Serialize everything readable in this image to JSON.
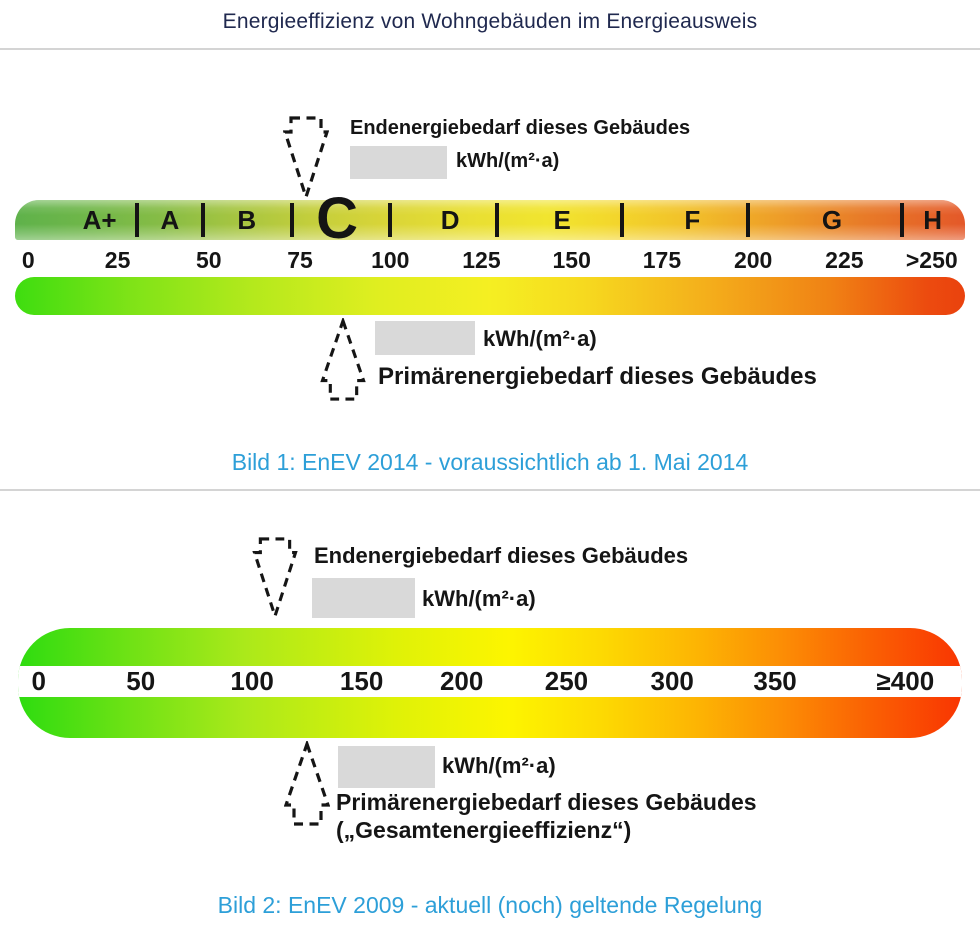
{
  "page": {
    "title": "Energieeffizienz von Wohngebäuden im Energieausweis"
  },
  "colors": {
    "title_navy": "#20294f",
    "caption_blue": "#2d9fd8",
    "placeholder_gray": "#d9d9d9",
    "arrow_black": "#151515"
  },
  "figure1": {
    "caption": "Bild 1: EnEV 2014 - voraussichtlich ab 1. Mai 2014",
    "annotation_top": {
      "label": "Endenergiebedarf dieses Gebäudes",
      "unit": "kWh/(m²·a)"
    },
    "annotation_bottom": {
      "unit": "kWh/(m²·a)",
      "label": "Primärenergiebedarf dieses Gebäudes"
    },
    "scale": {
      "classes": [
        {
          "label": "A+",
          "pos": 8.9
        },
        {
          "label": "A",
          "pos": 16.3
        },
        {
          "label": "B",
          "pos": 24.4
        },
        {
          "label": "C",
          "pos": 33.9,
          "current": true
        },
        {
          "label": "D",
          "pos": 45.8
        },
        {
          "label": "E",
          "pos": 57.6
        },
        {
          "label": "F",
          "pos": 71.3
        },
        {
          "label": "G",
          "pos": 86.0
        },
        {
          "label": "H",
          "pos": 96.6
        }
      ],
      "dividers": [
        12.8,
        19.8,
        29.2,
        39.5,
        50.7,
        63.9,
        77.2,
        93.4
      ],
      "ticks": [
        {
          "label": "0",
          "pos": 1.4
        },
        {
          "label": "25",
          "pos": 10.8
        },
        {
          "label": "50",
          "pos": 20.4
        },
        {
          "label": "75",
          "pos": 30.0
        },
        {
          "label": "100",
          "pos": 39.5
        },
        {
          "label": "125",
          "pos": 49.1
        },
        {
          "label": "150",
          "pos": 58.6
        },
        {
          "label": "175",
          "pos": 68.1
        },
        {
          "label": "200",
          "pos": 77.7
        },
        {
          "label": "225",
          "pos": 87.3
        },
        {
          "label": ">250",
          "pos": 96.5
        }
      ],
      "class_band_colors": [
        "#5fb24b 0%",
        "#6eb649 7%",
        "#85bc46 15%",
        "#a5c541 23%",
        "#c3ce3c 31%",
        "#d9d538 39%",
        "#e9df33 48%",
        "#f1e52f 56%",
        "#f3d92c 62%",
        "#f2c32a 70%",
        "#ee9f28 80%",
        "#e87c28 89%",
        "#e45829 100%"
      ],
      "gradient_band_colors": [
        "#3edd10 0%",
        "#7ee317 12%",
        "#b4e91c 25%",
        "#dfee20 38%",
        "#f5ef22 50%",
        "#f6d91f 60%",
        "#f4ae1b 73%",
        "#f08114 86%",
        "#ec4b0f 96%",
        "#ea420e 100%"
      ]
    }
  },
  "figure2": {
    "caption": "Bild 2: EnEV 2009 - aktuell (noch) geltende Regelung",
    "annotation_top": {
      "label": "Endenergiebedarf dieses Gebäudes",
      "unit": "kWh/(m²·a)"
    },
    "annotation_bottom": {
      "unit": "kWh/(m²·a)",
      "label": "Primärenergiebedarf dieses Gebäudes",
      "sublabel": "(„Gesamtenergieeffizienz“)"
    },
    "scale": {
      "ticks": [
        {
          "label": "0",
          "pos": 2.2
        },
        {
          "label": "50",
          "pos": 13.0
        },
        {
          "label": "100",
          "pos": 24.8
        },
        {
          "label": "150",
          "pos": 36.4
        },
        {
          "label": "200",
          "pos": 47.0
        },
        {
          "label": "250",
          "pos": 58.1
        },
        {
          "label": "300",
          "pos": 69.3
        },
        {
          "label": "350",
          "pos": 80.2
        },
        {
          "label": "≥400",
          "pos": 94.0
        }
      ],
      "gradient_colors": [
        "#2edc10 0%",
        "#70e215 12%",
        "#abe91a 24%",
        "#dff207 40%",
        "#fdf500 52%",
        "#fdd902 62%",
        "#fdb403 72%",
        "#fc8d05 81%",
        "#fa5d03 91%",
        "#f93502 100%"
      ]
    }
  }
}
